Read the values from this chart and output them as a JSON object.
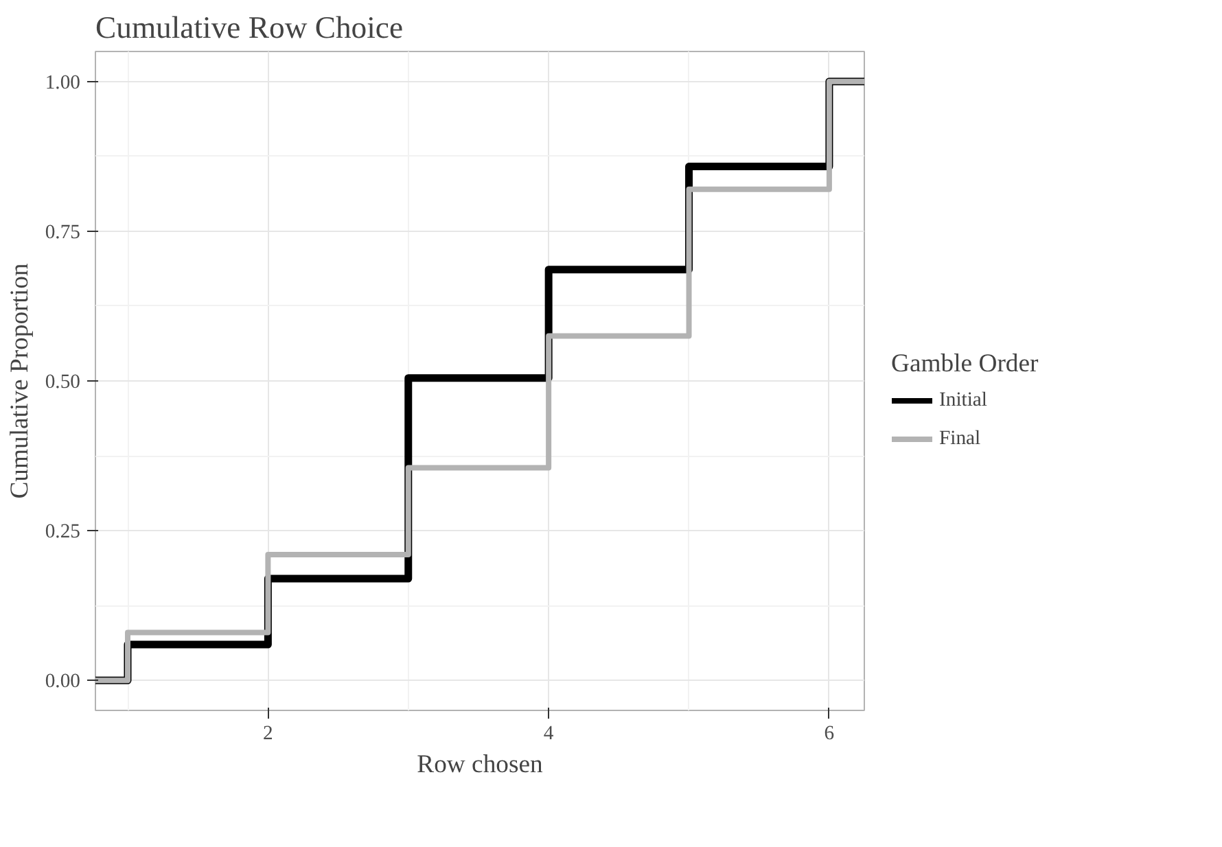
{
  "chart_data": {
    "type": "step",
    "title": "Cumulative Row Choice",
    "xlabel": "Row chosen",
    "ylabel": "Cumulative Proportion",
    "legend_title": "Gamble Order",
    "series": [
      {
        "name": "Initial",
        "color": "#000000",
        "x": [
          0.77,
          1,
          2,
          3,
          4,
          5,
          6,
          6.25
        ],
        "values": [
          0,
          0.06,
          0.17,
          0.505,
          0.686,
          0.858,
          1,
          1
        ]
      },
      {
        "name": "Final",
        "color": "#b3b3b3",
        "x": [
          0.77,
          1,
          2,
          3,
          4,
          5,
          6,
          6.25
        ],
        "values": [
          0,
          0.08,
          0.21,
          0.355,
          0.575,
          0.82,
          1,
          1
        ]
      }
    ],
    "xlim": [
      0.77,
      6.25
    ],
    "xticks": [
      2,
      4,
      6
    ],
    "ylim": [
      -0.05,
      1.05
    ],
    "yticks": [
      {
        "value": 0,
        "label": "0.00"
      },
      {
        "value": 0.25,
        "label": "0.25"
      },
      {
        "value": 0.5,
        "label": "0.50"
      },
      {
        "value": 0.75,
        "label": "0.75"
      },
      {
        "value": 1,
        "label": "1.00"
      }
    ],
    "grid": true,
    "legend": "right",
    "line_style": "solid"
  }
}
